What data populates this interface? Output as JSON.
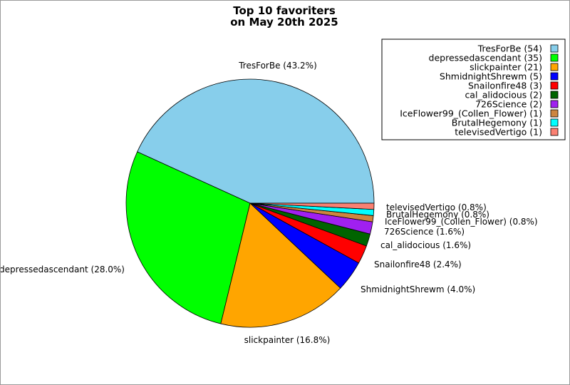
{
  "chart_data": {
    "type": "pie",
    "title_lines": [
      "Top 10 favoriters",
      "on May 20th 2025"
    ],
    "slices": [
      {
        "name": "TresForBe",
        "value": 54,
        "percent_label": "TresForBe (43.2%)",
        "legend_label": "TresForBe (54)",
        "color": "#87CEEB"
      },
      {
        "name": "depressedascendant",
        "value": 35,
        "percent_label": "depressedascendant (28.0%)",
        "legend_label": "depressedascendant (35)",
        "color": "#00FF00"
      },
      {
        "name": "slickpainter",
        "value": 21,
        "percent_label": "slickpainter (16.8%)",
        "legend_label": "slickpainter (21)",
        "color": "#FFA500"
      },
      {
        "name": "ShmidnightShrewm",
        "value": 5,
        "percent_label": "ShmidnightShrewm (4.0%)",
        "legend_label": "ShmidnightShrewm (5)",
        "color": "#0000FF"
      },
      {
        "name": "Snailonfire48",
        "value": 3,
        "percent_label": "Snailonfire48 (2.4%)",
        "legend_label": "Snailonfire48 (3)",
        "color": "#FF0000"
      },
      {
        "name": "cal_alidocious",
        "value": 2,
        "percent_label": "cal_alidocious (1.6%)",
        "legend_label": "cal_alidocious (2)",
        "color": "#006400"
      },
      {
        "name": "726Science",
        "value": 2,
        "percent_label": "726Science (1.6%)",
        "legend_label": "726Science (2)",
        "color": "#A020F0"
      },
      {
        "name": "IceFlower99_(Collen_Flower)",
        "value": 1,
        "percent_label": "IceFlower99_(Collen_Flower) (0.8%)",
        "legend_label": "IceFlower99_(Collen_Flower) (1)",
        "color": "#CD853F"
      },
      {
        "name": "BrutalHegemony",
        "value": 1,
        "percent_label": "BrutalHegemony (0.8%)",
        "legend_label": "BrutalHegemony (1)",
        "color": "#00FFFF"
      },
      {
        "name": "televisedVertigo",
        "value": 1,
        "percent_label": "televisedVertigo (0.8%)",
        "legend_label": "televisedVertigo (1)",
        "color": "#FA8072"
      }
    ],
    "start_angle_deg": 0,
    "direction": "counterclockwise",
    "legend_position": "top-right"
  }
}
